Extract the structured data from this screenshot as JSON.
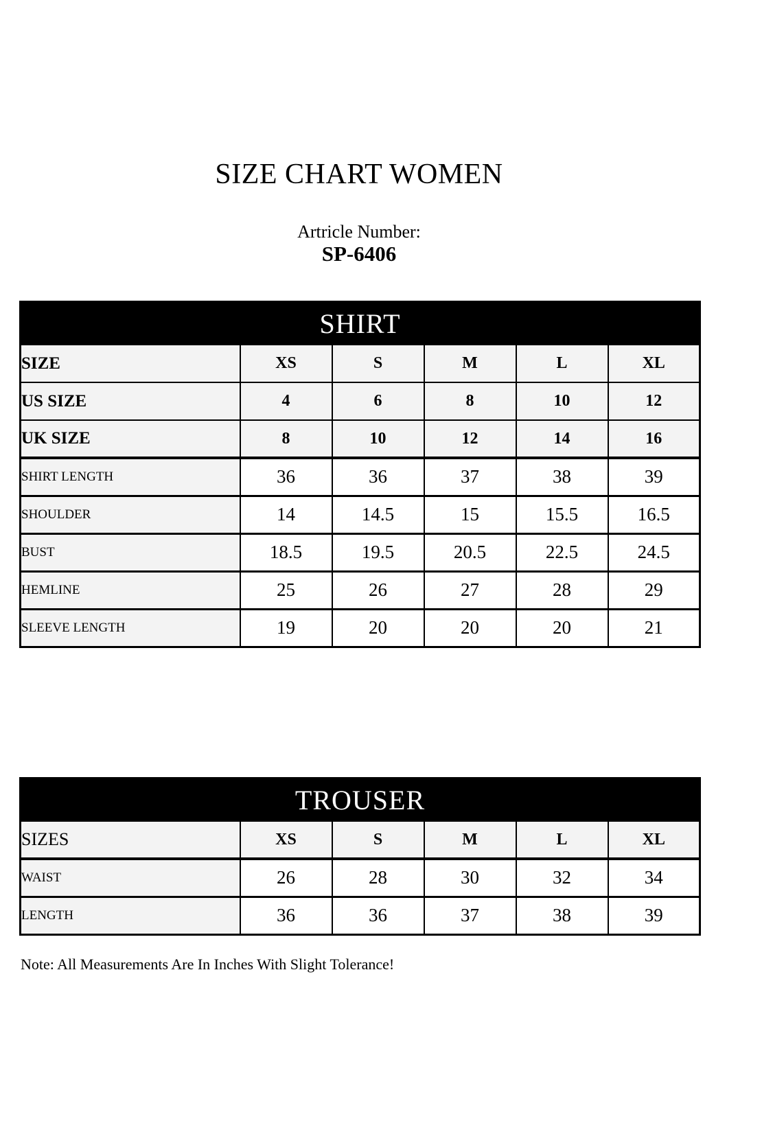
{
  "page": {
    "title": "SIZE CHART WOMEN",
    "article_label": "Artricle Number:",
    "article_number": "SP-6406",
    "note": "Note: All Measurements Are In Inches With Slight Tolerance!"
  },
  "colors": {
    "header_bg": "#000000",
    "header_text": "#ffffff",
    "label_cell_bg": "#f3f3f3",
    "value_cell_bg": "#ffffff",
    "border": "#000000"
  },
  "shirt": {
    "title": "SHIRT",
    "rows": [
      {
        "label": "SIZE",
        "values": [
          "XS",
          "S",
          "M",
          "L",
          "XL"
        ]
      },
      {
        "label": "US SIZE",
        "values": [
          "4",
          "6",
          "8",
          "10",
          "12"
        ]
      },
      {
        "label": "UK SIZE",
        "values": [
          "8",
          "10",
          "12",
          "14",
          "16"
        ]
      },
      {
        "label": "SHIRT LENGTH",
        "values": [
          "36",
          "36",
          "37",
          "38",
          "39"
        ]
      },
      {
        "label": "SHOULDER",
        "values": [
          "14",
          "14.5",
          "15",
          "15.5",
          "16.5"
        ]
      },
      {
        "label": "BUST",
        "values": [
          "18.5",
          "19.5",
          "20.5",
          "22.5",
          "24.5"
        ]
      },
      {
        "label": "HEMLINE",
        "values": [
          "25",
          "26",
          "27",
          "28",
          "29"
        ]
      },
      {
        "label": "SLEEVE LENGTH",
        "values": [
          "19",
          "20",
          "20",
          "20",
          "21"
        ]
      }
    ]
  },
  "trouser": {
    "title": "TROUSER",
    "rows": [
      {
        "label": "SIZES",
        "values": [
          "XS",
          "S",
          "M",
          "L",
          "XL"
        ]
      },
      {
        "label": "WAIST",
        "values": [
          "26",
          "28",
          "30",
          "32",
          "34"
        ]
      },
      {
        "label": "LENGTH",
        "values": [
          "36",
          "36",
          "37",
          "38",
          "39"
        ]
      }
    ]
  }
}
